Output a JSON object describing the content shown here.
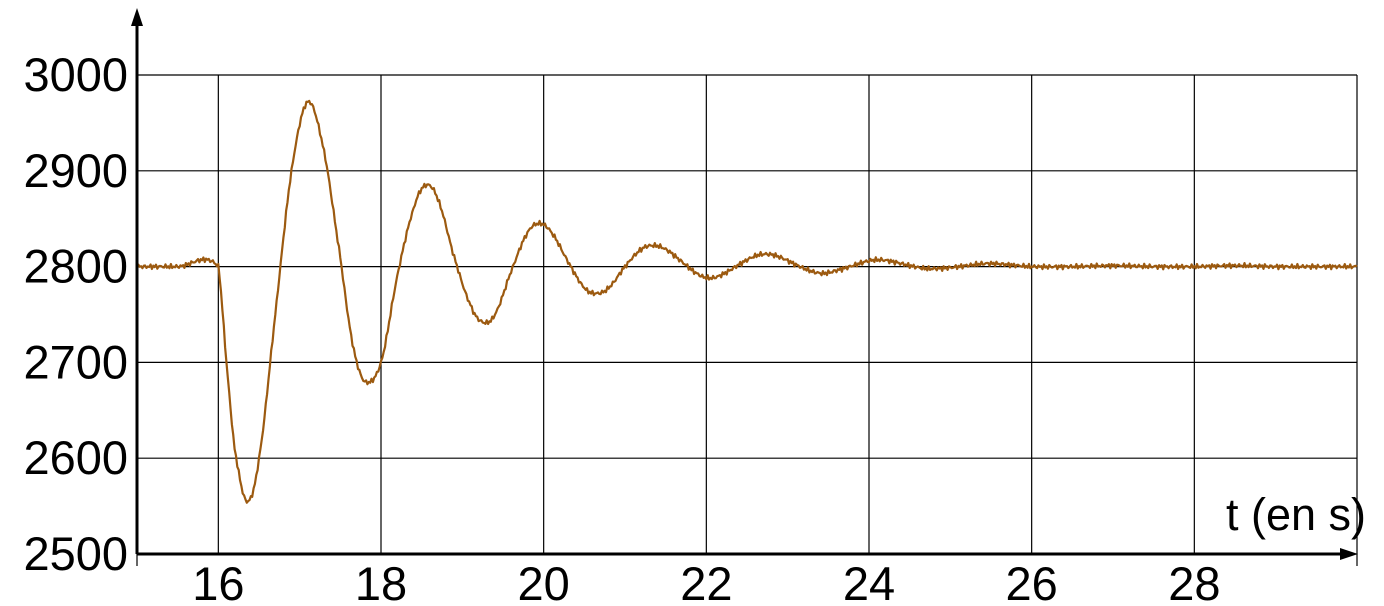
{
  "chart_data": {
    "type": "line",
    "title": "",
    "xlabel": "t (en s)",
    "ylabel": "",
    "xlim": [
      15,
      30
    ],
    "ylim": [
      2500,
      3000
    ],
    "x_ticks": [
      16,
      18,
      20,
      22,
      24,
      26,
      28
    ],
    "x_tick_labels": [
      "16",
      "18",
      "20",
      "22",
      "24",
      "26",
      "28"
    ],
    "y_ticks": [
      2500,
      2600,
      2700,
      2800,
      2900,
      3000
    ],
    "y_tick_labels": [
      "2500",
      "2600",
      "2700",
      "2800",
      "2900",
      "3000"
    ],
    "grid": true,
    "series": [
      {
        "color": "#9c5a10",
        "x": [
          15.0,
          15.5,
          16.0,
          16.1,
          16.2,
          16.35,
          16.5,
          16.7,
          16.9,
          17.1,
          17.3,
          17.5,
          17.65,
          17.8,
          18.0,
          18.2,
          18.4,
          18.55,
          18.7,
          18.9,
          19.1,
          19.25,
          19.4,
          19.6,
          19.8,
          19.95,
          20.1,
          20.3,
          20.5,
          20.65,
          20.8,
          21.0,
          21.2,
          21.35,
          21.5,
          21.7,
          21.9,
          22.05,
          22.2,
          22.4,
          22.6,
          22.75,
          22.9,
          23.1,
          23.3,
          23.45,
          23.6,
          23.8,
          24.0,
          24.15,
          24.3,
          24.5,
          24.7,
          24.85,
          25.0,
          25.2,
          25.4,
          25.55,
          25.7,
          26.0,
          26.5,
          27.0,
          27.5,
          28.0,
          28.5,
          29.0,
          29.5,
          30.0
        ],
        "values": [
          2800,
          2800,
          2800,
          2700,
          2610,
          2555,
          2600,
          2750,
          2900,
          2972,
          2920,
          2810,
          2720,
          2680,
          2700,
          2790,
          2860,
          2885,
          2870,
          2810,
          2760,
          2742,
          2750,
          2795,
          2835,
          2845,
          2835,
          2805,
          2778,
          2772,
          2778,
          2800,
          2818,
          2822,
          2818,
          2805,
          2792,
          2788,
          2792,
          2802,
          2811,
          2813,
          2810,
          2802,
          2795,
          2793,
          2796,
          2801,
          2806,
          2807,
          2805,
          2801,
          2798,
          2798,
          2799,
          2801,
          2803,
          2803,
          2802,
          2800,
          2800,
          2801,
          2800,
          2800,
          2801,
          2800,
          2800,
          2800
        ]
      }
    ]
  }
}
